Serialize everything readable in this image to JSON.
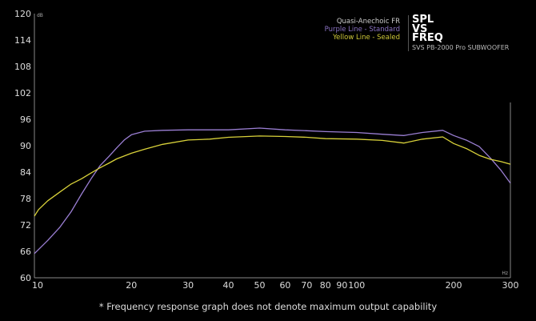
{
  "chart_data": {
    "type": "line",
    "title": "SPL VS FREQ",
    "title_lines": [
      "SPL",
      "VS",
      "FREQ"
    ],
    "subtitle": "SVS PB-2000 Pro SUBWOOFER",
    "legend": {
      "heading": "Quasi-Anechoic FR",
      "entries": [
        "Purple Line - Standard",
        "Yellow Line - Sealed"
      ],
      "placement": "top-right"
    },
    "xlabel": "Hz",
    "ylabel": "dB",
    "xscale": "log",
    "xlim": [
      10,
      300
    ],
    "ylim": [
      60,
      120
    ],
    "xticks": [
      10,
      20,
      30,
      40,
      50,
      60,
      70,
      80,
      90,
      100,
      200,
      300
    ],
    "yticks": [
      60,
      66,
      72,
      78,
      84,
      90,
      96,
      102,
      108,
      114,
      120
    ],
    "grid": false,
    "series": [
      {
        "name": "Purple Line - Standard",
        "color": "#9b7fd4",
        "x": [
          10,
          11,
          12,
          13,
          14,
          15,
          16,
          17,
          18,
          19,
          20,
          22,
          25,
          30,
          40,
          50,
          60,
          70,
          80,
          90,
          100,
          120,
          140,
          160,
          185,
          200,
          220,
          240,
          260,
          280,
          300
        ],
        "y": [
          65.5,
          68.5,
          71.5,
          75,
          79,
          82.5,
          85.5,
          87.5,
          89.5,
          91.3,
          92.5,
          93.3,
          93.5,
          93.6,
          93.6,
          94,
          93.6,
          93.4,
          93.2,
          93.1,
          93,
          92.6,
          92.3,
          93,
          93.5,
          92.3,
          91.2,
          89.8,
          87.2,
          84.5,
          81.5
        ]
      },
      {
        "name": "Yellow Line - Sealed",
        "color": "#d9d23a",
        "x": [
          10,
          10.3,
          11,
          12,
          13,
          14,
          15,
          16,
          17,
          18,
          20,
          22,
          25,
          30,
          35,
          40,
          50,
          60,
          70,
          80,
          100,
          120,
          140,
          160,
          185,
          200,
          220,
          240,
          260,
          280,
          300
        ],
        "y": [
          74,
          75.5,
          77.5,
          79.5,
          81.3,
          82.5,
          83.8,
          85,
          86,
          87,
          88.3,
          89.2,
          90.3,
          91.3,
          91.5,
          91.9,
          92.2,
          92.1,
          91.9,
          91.6,
          91.5,
          91.2,
          90.6,
          91.5,
          92,
          90.5,
          89.3,
          87.8,
          86.9,
          86.4,
          85.8
        ]
      }
    ],
    "footnote": "* Frequency response graph does not denote maximum output capability"
  }
}
